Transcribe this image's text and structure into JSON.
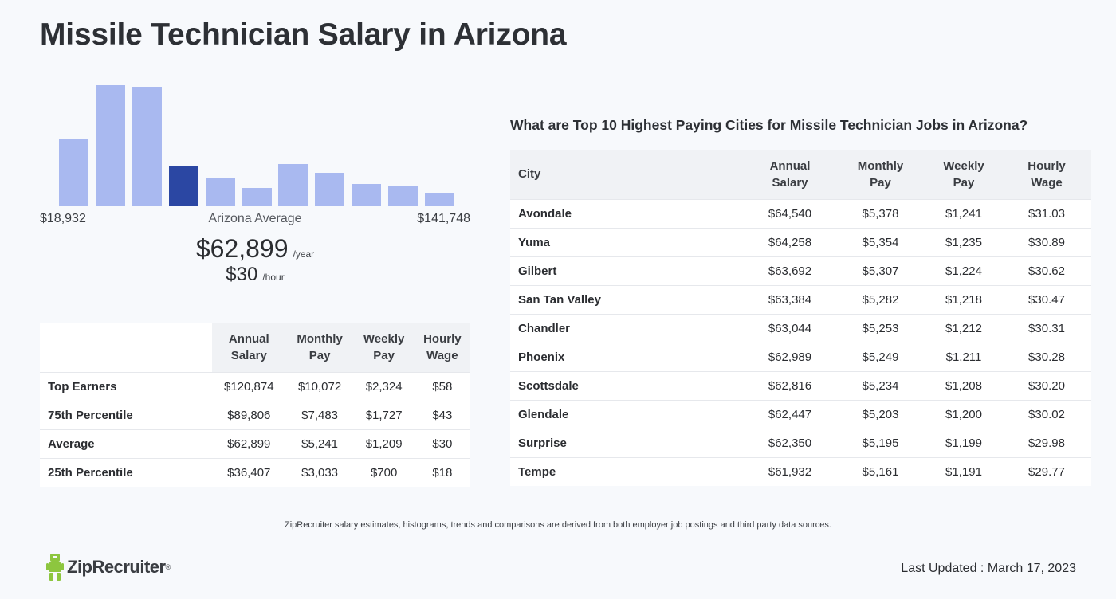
{
  "title": "Missile Technician Salary in Arizona",
  "histogram": {
    "bins": [
      {
        "height_rel": 0.54,
        "highlight": false
      },
      {
        "height_rel": 0.98,
        "highlight": false
      },
      {
        "height_rel": 0.97,
        "highlight": false
      },
      {
        "height_rel": 0.33,
        "highlight": true
      },
      {
        "height_rel": 0.23,
        "highlight": false
      },
      {
        "height_rel": 0.15,
        "highlight": false
      },
      {
        "height_rel": 0.34,
        "highlight": false
      },
      {
        "height_rel": 0.27,
        "highlight": false
      },
      {
        "height_rel": 0.18,
        "highlight": false
      },
      {
        "height_rel": 0.16,
        "highlight": false
      },
      {
        "height_rel": 0.11,
        "highlight": false
      }
    ],
    "min_label": "$18,932",
    "avg_label": "Arizona Average",
    "max_label": "$141,748",
    "colors": {
      "bar": "#a9b9f0",
      "highlight": "#2b47a3"
    }
  },
  "average": {
    "year_value": "$62,899",
    "year_unit": "/year",
    "hour_value": "$30",
    "hour_unit": "/hour"
  },
  "percentile_table": {
    "headers": [
      {
        "line1": "Annual",
        "line2": "Salary"
      },
      {
        "line1": "Monthly",
        "line2": "Pay"
      },
      {
        "line1": "Weekly",
        "line2": "Pay"
      },
      {
        "line1": "Hourly",
        "line2": "Wage"
      }
    ],
    "rows": [
      {
        "label": "Top Earners",
        "annual": "$120,874",
        "monthly": "$10,072",
        "weekly": "$2,324",
        "hourly": "$58"
      },
      {
        "label": "75th Percentile",
        "annual": "$89,806",
        "monthly": "$7,483",
        "weekly": "$1,727",
        "hourly": "$43"
      },
      {
        "label": "Average",
        "annual": "$62,899",
        "monthly": "$5,241",
        "weekly": "$1,209",
        "hourly": "$30"
      },
      {
        "label": "25th Percentile",
        "annual": "$36,407",
        "monthly": "$3,033",
        "weekly": "$700",
        "hourly": "$18"
      }
    ]
  },
  "city_section": {
    "heading": "What are Top 10 Highest Paying Cities for Missile Technician Jobs in Arizona?",
    "city_header": "City",
    "headers": [
      {
        "line1": "Annual",
        "line2": "Salary"
      },
      {
        "line1": "Monthly",
        "line2": "Pay"
      },
      {
        "line1": "Weekly",
        "line2": "Pay"
      },
      {
        "line1": "Hourly",
        "line2": "Wage"
      }
    ],
    "rows": [
      {
        "city": "Avondale",
        "annual": "$64,540",
        "monthly": "$5,378",
        "weekly": "$1,241",
        "hourly": "$31.03"
      },
      {
        "city": "Yuma",
        "annual": "$64,258",
        "monthly": "$5,354",
        "weekly": "$1,235",
        "hourly": "$30.89"
      },
      {
        "city": "Gilbert",
        "annual": "$63,692",
        "monthly": "$5,307",
        "weekly": "$1,224",
        "hourly": "$30.62"
      },
      {
        "city": "San Tan Valley",
        "annual": "$63,384",
        "monthly": "$5,282",
        "weekly": "$1,218",
        "hourly": "$30.47"
      },
      {
        "city": "Chandler",
        "annual": "$63,044",
        "monthly": "$5,253",
        "weekly": "$1,212",
        "hourly": "$30.31"
      },
      {
        "city": "Phoenix",
        "annual": "$62,989",
        "monthly": "$5,249",
        "weekly": "$1,211",
        "hourly": "$30.28"
      },
      {
        "city": "Scottsdale",
        "annual": "$62,816",
        "monthly": "$5,234",
        "weekly": "$1,208",
        "hourly": "$30.20"
      },
      {
        "city": "Glendale",
        "annual": "$62,447",
        "monthly": "$5,203",
        "weekly": "$1,200",
        "hourly": "$30.02"
      },
      {
        "city": "Surprise",
        "annual": "$62,350",
        "monthly": "$5,195",
        "weekly": "$1,199",
        "hourly": "$29.98"
      },
      {
        "city": "Tempe",
        "annual": "$61,932",
        "monthly": "$5,161",
        "weekly": "$1,191",
        "hourly": "$29.77"
      }
    ]
  },
  "disclaimer": "ZipRecruiter salary estimates, histograms, trends and comparisons are derived from both employer job postings and third party data sources.",
  "footer": {
    "logo_text": "ZipRecruiter",
    "logo_icon": "ziprecruiter-mascot-icon",
    "logo_color": "#8dc63f",
    "last_updated": "Last Updated : March 17, 2023"
  }
}
